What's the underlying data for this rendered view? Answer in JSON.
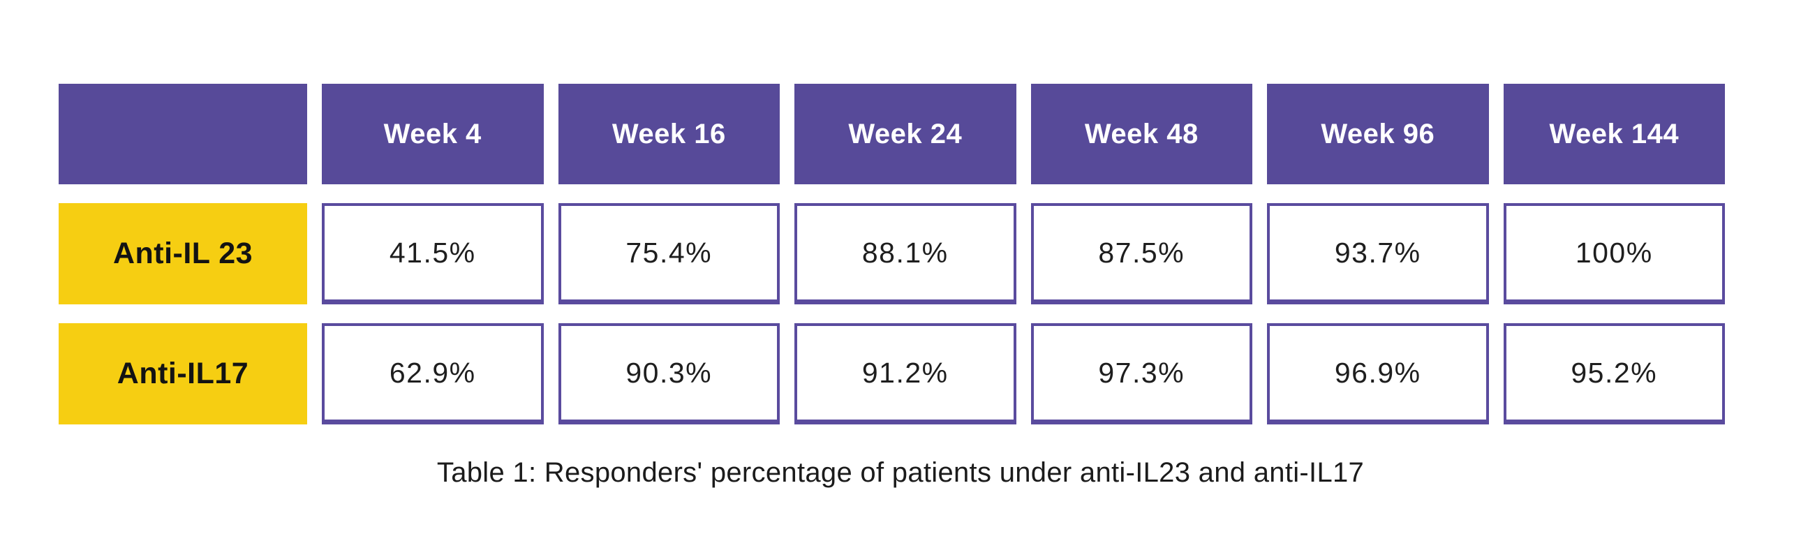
{
  "table": {
    "caption": "Table 1: Responders' percentage of patients under anti-IL23 and anti-IL17",
    "corner_label": "",
    "columns": [
      "Week 4",
      "Week 16",
      "Week 24",
      "Week 48",
      "Week 96",
      "Week 144"
    ],
    "rows": [
      {
        "label": "Anti-IL 23",
        "values": [
          "41.5%",
          "75.4%",
          "88.1%",
          "87.5%",
          "93.7%",
          "100%"
        ]
      },
      {
        "label": "Anti-IL17",
        "values": [
          "62.9%",
          "90.3%",
          "91.2%",
          "97.3%",
          "96.9%",
          "95.2%"
        ]
      }
    ],
    "colors": {
      "header_bg": "#574A99",
      "header_text": "#FFFFFF",
      "label_bg": "#F6CE12",
      "label_text": "#131313",
      "cell_border": "#5A4B9E",
      "cell_bg": "#FFFFFF",
      "value_text": "#1E1E1E",
      "page_bg": "#FFFFFF"
    }
  },
  "chart_data": {
    "type": "table",
    "title": "Table 1: Responders' percentage of patients under anti-IL23 and anti-IL17",
    "categories": [
      "Week 4",
      "Week 16",
      "Week 24",
      "Week 48",
      "Week 96",
      "Week 144"
    ],
    "series": [
      {
        "name": "Anti-IL 23",
        "values": [
          41.5,
          75.4,
          88.1,
          87.5,
          93.7,
          100
        ]
      },
      {
        "name": "Anti-IL17",
        "values": [
          62.9,
          90.3,
          91.2,
          97.3,
          96.9,
          95.2
        ]
      }
    ],
    "unit": "%",
    "legend_position": "left-row-labels",
    "grid": false
  }
}
